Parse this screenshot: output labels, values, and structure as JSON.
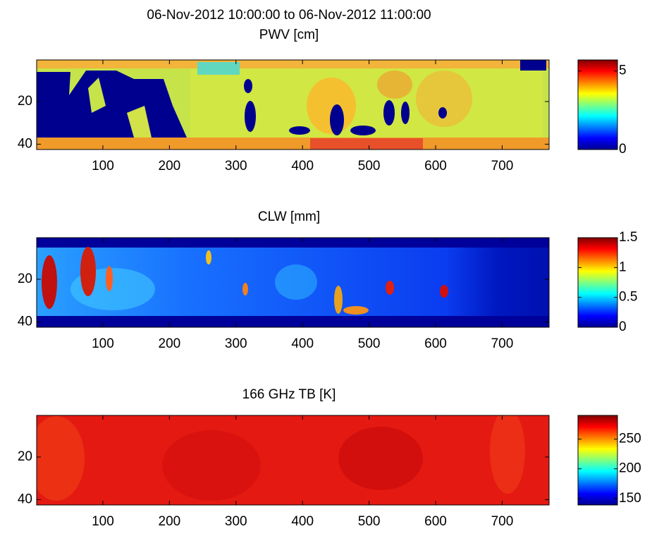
{
  "chart_data": [
    {
      "type": "heatmap",
      "suptitle": "06-Nov-2012 10:00:00 to 06-Nov-2012 11:00:00",
      "title": "PWV [cm]",
      "xlim": [
        0.5,
        770.5
      ],
      "ylim": [
        0.5,
        42.5
      ],
      "xticks": [
        100,
        200,
        300,
        400,
        500,
        600,
        700
      ],
      "yticks": [
        20,
        40
      ],
      "colormap": "jet",
      "clim": [
        0,
        5.7
      ],
      "cticks": [
        0,
        5
      ]
    },
    {
      "type": "heatmap",
      "title": "CLW [mm]",
      "xlim": [
        0.5,
        770.5
      ],
      "ylim": [
        0.5,
        42.5
      ],
      "xticks": [
        100,
        200,
        300,
        400,
        500,
        600,
        700
      ],
      "yticks": [
        20,
        40
      ],
      "colormap": "jet",
      "clim": [
        0,
        1.5
      ],
      "cticks": [
        0,
        0.5,
        1,
        1.5
      ]
    },
    {
      "type": "heatmap",
      "title": "166 GHz TB [K]",
      "xlim": [
        0.5,
        770.5
      ],
      "ylim": [
        0.5,
        42.5
      ],
      "xticks": [
        100,
        200,
        300,
        400,
        500,
        600,
        700
      ],
      "yticks": [
        20,
        40
      ],
      "colormap": "jet",
      "clim": [
        139,
        290
      ],
      "cticks": [
        150,
        200,
        250
      ]
    }
  ]
}
